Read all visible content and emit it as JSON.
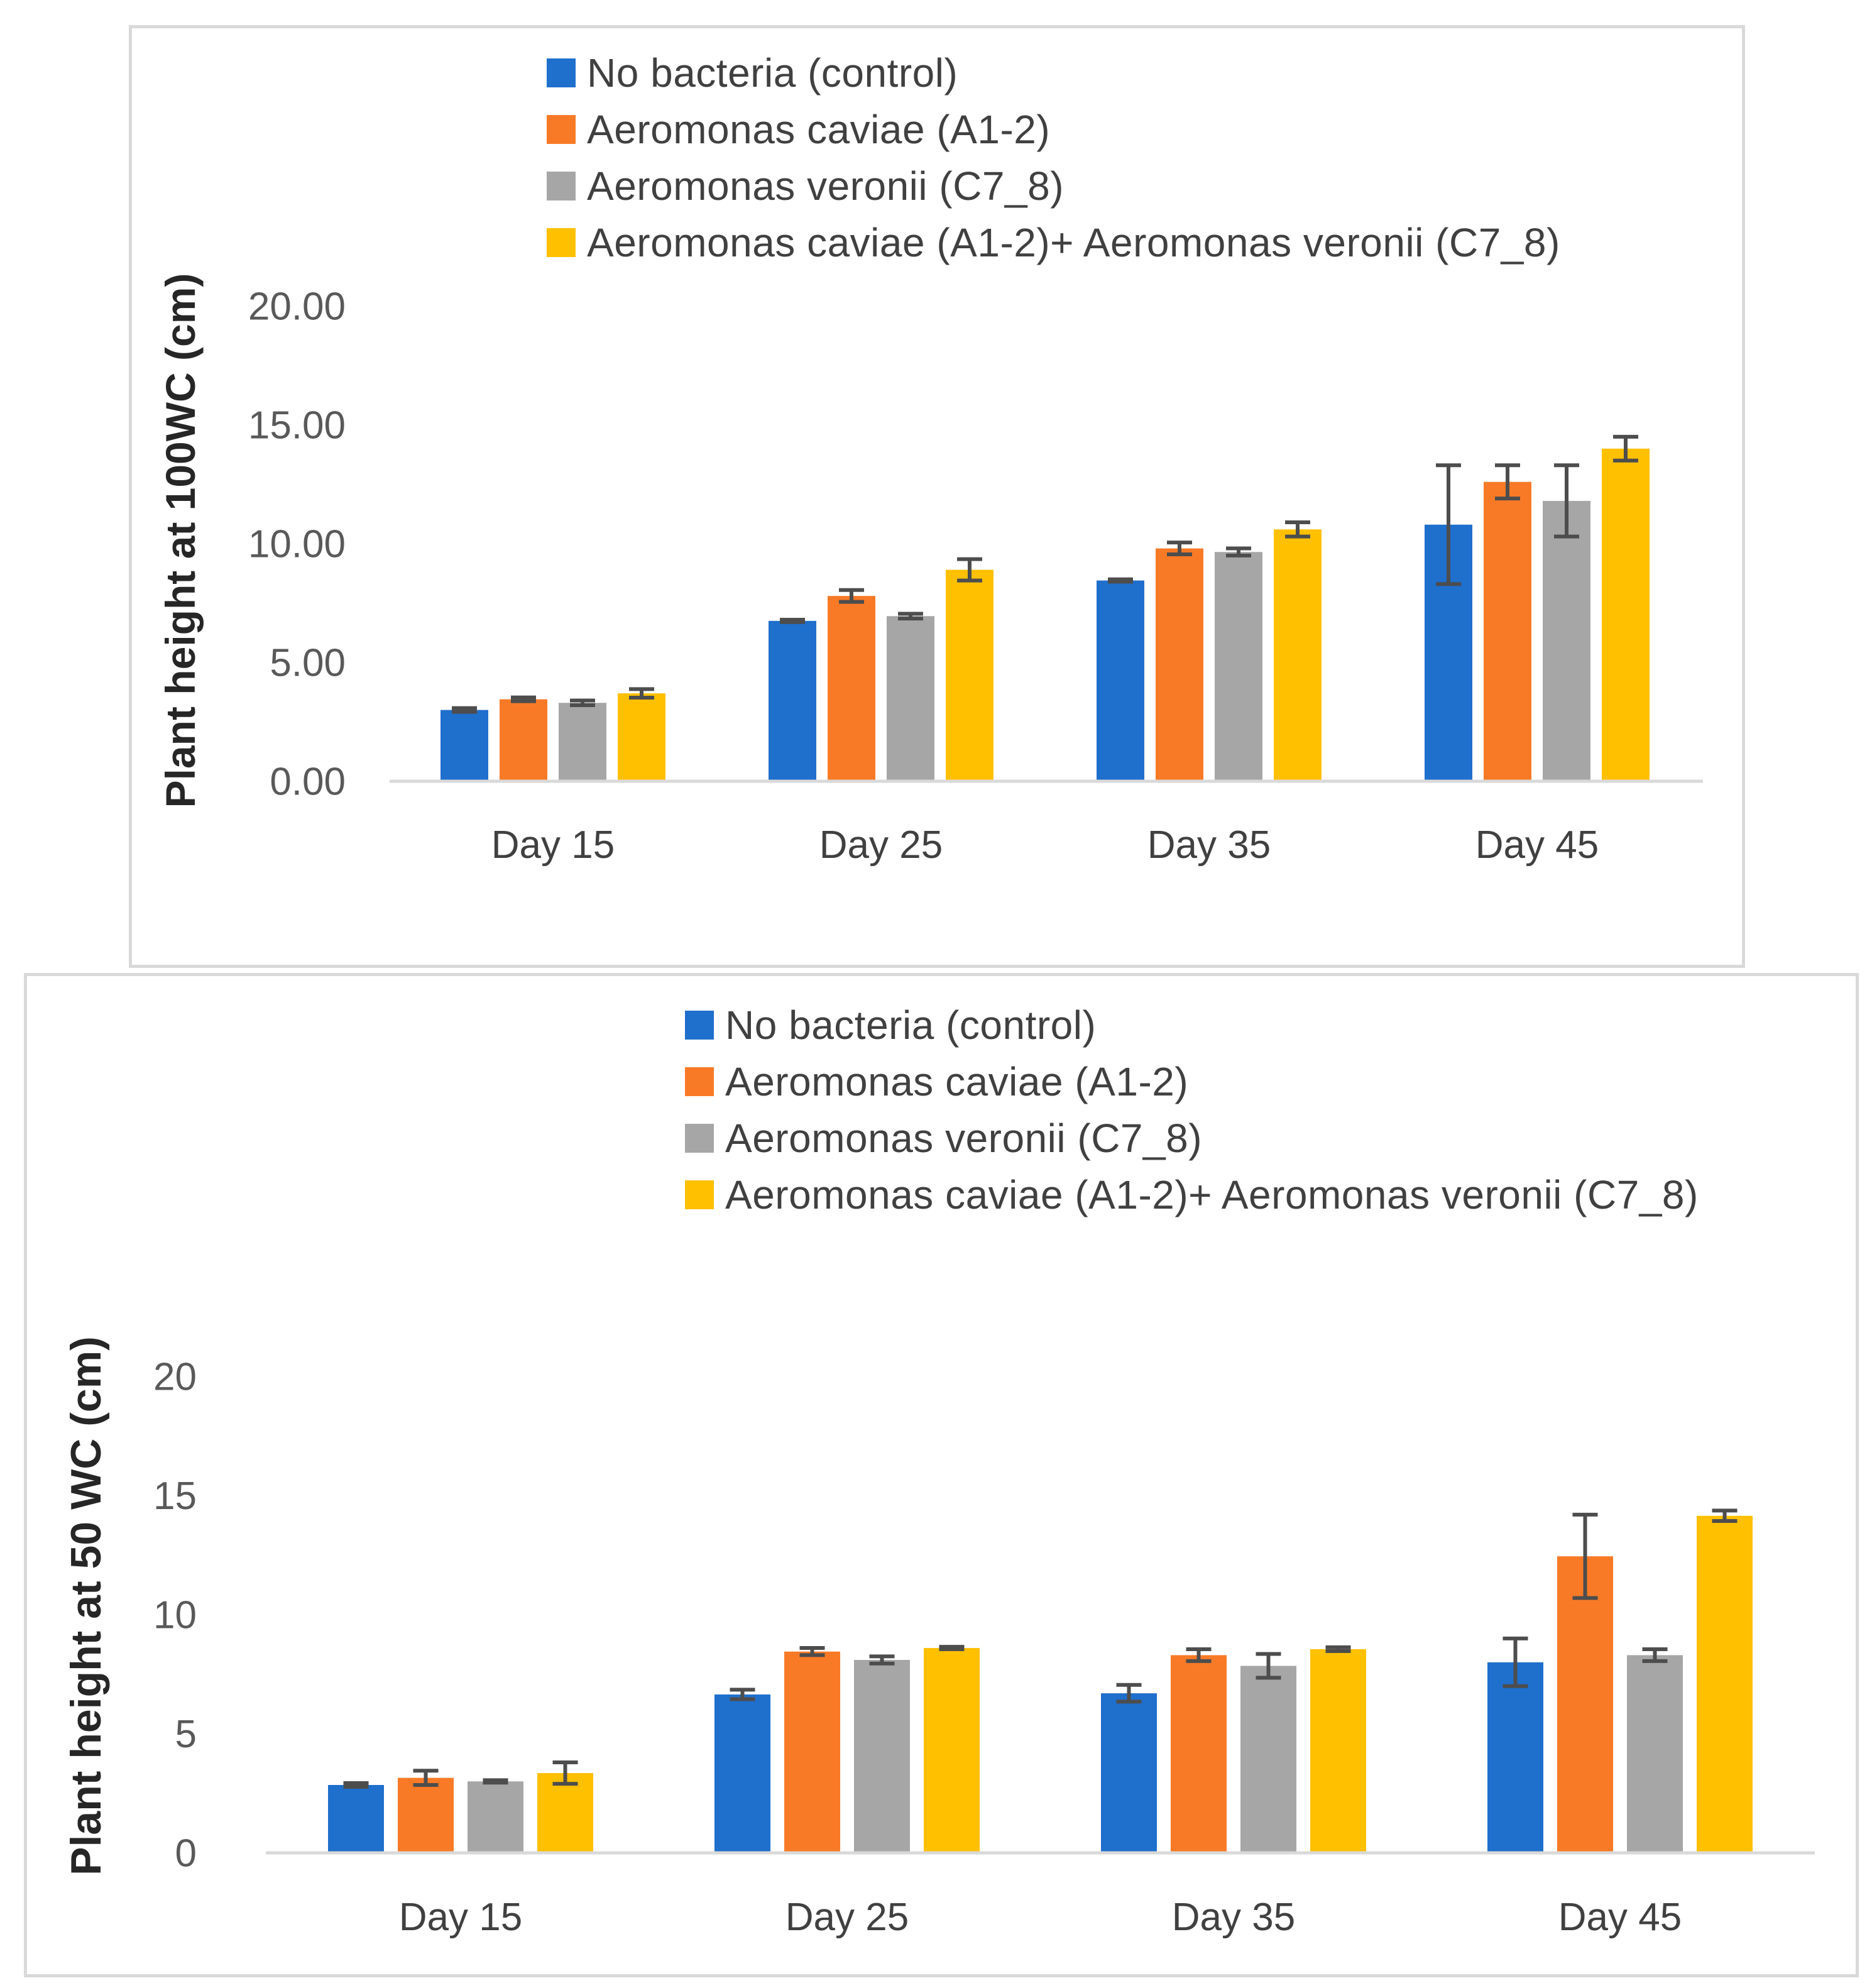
{
  "colors": {
    "series": [
      "#1f6fcc",
      "#f87a27",
      "#a6a6a6",
      "#ffc000"
    ],
    "error_bar": "#4d4d4d",
    "axis": "#d9d9d9"
  },
  "chart_data": [
    {
      "type": "bar",
      "legend": [
        "No bacteria (control)",
        "Aeromonas caviae (A1-2)",
        "Aeromonas veronii (C7_8)",
        "Aeromonas caviae (A1-2)+ Aeromonas veronii (C7_8)"
      ],
      "categories": [
        "Day 15",
        "Day 25",
        "Day 35",
        "Day 45"
      ],
      "ylabel": "Plant height at 100WC (cm)",
      "xlabel": "",
      "ylim": [
        0,
        20
      ],
      "yticks": [
        "0.00",
        "5.00",
        "10.00",
        "15.00",
        "20.00"
      ],
      "series": [
        {
          "name": "No bacteria (control)",
          "values": [
            3.0,
            6.75,
            8.45,
            10.8
          ],
          "errors": [
            0.08,
            0.05,
            0.05,
            2.5
          ]
        },
        {
          "name": "Aeromonas caviae (A1-2)",
          "values": [
            3.45,
            7.8,
            9.8,
            12.6
          ],
          "errors": [
            0.08,
            0.25,
            0.25,
            0.7
          ]
        },
        {
          "name": "Aeromonas veronii (C7_8)",
          "values": [
            3.3,
            6.95,
            9.65,
            11.8
          ],
          "errors": [
            0.1,
            0.1,
            0.15,
            1.5
          ]
        },
        {
          "name": "Aeromonas caviae (A1-2)+ Aeromonas veronii (C7_8)",
          "values": [
            3.7,
            8.9,
            10.6,
            14.0
          ],
          "errors": [
            0.18,
            0.45,
            0.3,
            0.5
          ]
        }
      ],
      "legend_position": "top-center",
      "grid": false
    },
    {
      "type": "bar",
      "legend": [
        "No bacteria (control)",
        "Aeromonas caviae (A1-2)",
        "Aeromonas veronii (C7_8)",
        "Aeromonas caviae (A1-2)+ Aeromonas veronii (C7_8)"
      ],
      "categories": [
        "Day 15",
        "Day 25",
        "Day 35",
        "Day 45"
      ],
      "ylabel": "Plant  height at 50 WC (cm)",
      "xlabel": "",
      "ylim": [
        0,
        20
      ],
      "yticks": [
        "0",
        "5",
        "10",
        "15",
        "20"
      ],
      "series": [
        {
          "name": "No bacteria (control)",
          "values": [
            2.85,
            6.65,
            6.7,
            8.0
          ],
          "errors": [
            0.08,
            0.2,
            0.35,
            1.0
          ]
        },
        {
          "name": "Aeromonas caviae (A1-2)",
          "values": [
            3.15,
            8.45,
            8.3,
            12.45
          ],
          "errors": [
            0.3,
            0.15,
            0.25,
            1.75
          ]
        },
        {
          "name": "Aeromonas veronii (C7_8)",
          "values": [
            3.0,
            8.1,
            7.85,
            8.3
          ],
          "errors": [
            0.05,
            0.15,
            0.5,
            0.25
          ]
        },
        {
          "name": "Aeromonas caviae (A1-2)+ Aeromonas veronii (C7_8)",
          "values": [
            3.35,
            8.6,
            8.55,
            14.15
          ],
          "errors": [
            0.45,
            0.05,
            0.08,
            0.22
          ]
        }
      ],
      "legend_position": "top-center",
      "grid": false
    }
  ]
}
